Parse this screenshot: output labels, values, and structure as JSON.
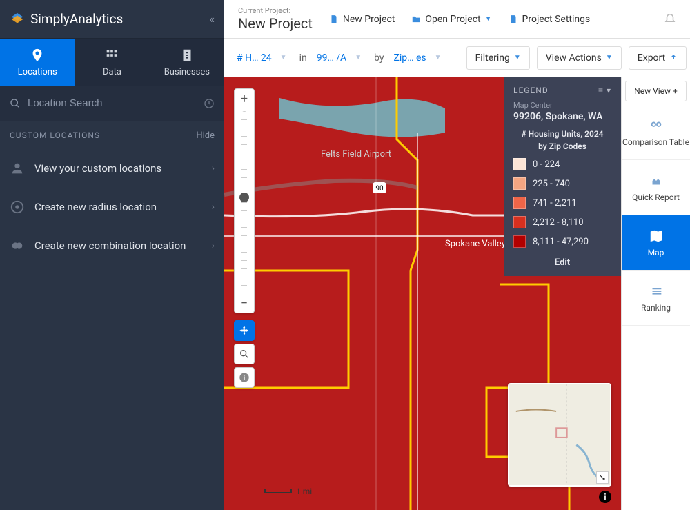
{
  "brand": "SimplyAnalytics",
  "sidebar": {
    "tabs": [
      {
        "label": "Locations",
        "active": true
      },
      {
        "label": "Data",
        "active": false
      },
      {
        "label": "Businesses",
        "active": false
      }
    ],
    "search_placeholder": "Location Search",
    "section_label": "CUSTOM LOCATIONS",
    "hide_label": "Hide",
    "items": [
      {
        "label": "View your custom locations"
      },
      {
        "label": "Create new radius location"
      },
      {
        "label": "Create new combination location"
      }
    ]
  },
  "topbar": {
    "project_label": "Current Project:",
    "project_name": "New Project",
    "links": [
      {
        "label": "New Project",
        "dropdown": false
      },
      {
        "label": "Open Project",
        "dropdown": true
      },
      {
        "label": "Project Settings",
        "dropdown": false
      }
    ]
  },
  "filterbar": {
    "crumb1": "# H… 24",
    "sep1": "in",
    "crumb2": "99… /A",
    "sep2": "by",
    "crumb3": "Zip… es",
    "filtering": "Filtering",
    "view_actions": "View Actions",
    "export": "Export"
  },
  "right_rail": {
    "new_view": "New View",
    "items": [
      {
        "label": "Comparison Table",
        "active": false
      },
      {
        "label": "Quick Report",
        "active": false
      },
      {
        "label": "Map",
        "active": true
      },
      {
        "label": "Ranking",
        "active": false
      }
    ]
  },
  "legend": {
    "title": "LEGEND",
    "center_label": "Map Center",
    "center_value": "99206, Spokane, WA",
    "variable_line1": "# Housing Units, 2024",
    "variable_line2": "by Zip Codes",
    "buckets": [
      {
        "color": "#fce4d6",
        "label": "0 - 224"
      },
      {
        "color": "#f4a582",
        "label": "225 - 740"
      },
      {
        "color": "#ef6548",
        "label": "741 - 2,211"
      },
      {
        "color": "#d7301f",
        "label": "2,212 - 8,110"
      },
      {
        "color": "#b30000",
        "label": "8,111 - 47,290"
      }
    ],
    "edit": "Edit"
  },
  "map": {
    "base_color": "#b71c1c",
    "boundary_color": "#ffcc00",
    "road_color": "#ffffff",
    "water_color": "#7aa4ae",
    "airport_label": "Felts Field Airport",
    "city_label": "Spokane Valley",
    "highway_shield": "90",
    "scale_label": "1 mi"
  }
}
